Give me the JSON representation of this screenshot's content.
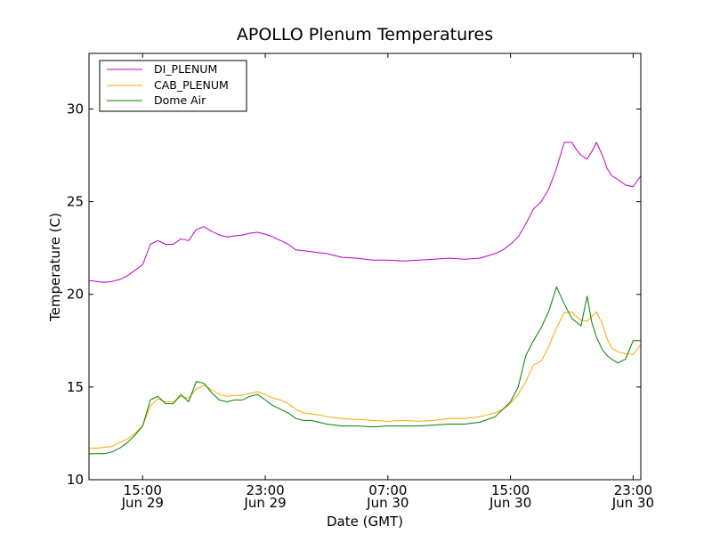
{
  "chart_data": {
    "type": "line",
    "title": "APOLLO Plenum Temperatures",
    "xlabel": "Date (GMT)",
    "ylabel": "Temperature (C)",
    "x_unit": "hours since Jun 29 00:00 GMT",
    "xlim": [
      11.5,
      47.5
    ],
    "ylim": [
      10,
      33
    ],
    "yticks": [
      {
        "value": 10,
        "label": "10"
      },
      {
        "value": 15,
        "label": "15"
      },
      {
        "value": 20,
        "label": "20"
      },
      {
        "value": 25,
        "label": "25"
      },
      {
        "value": 30,
        "label": "30"
      }
    ],
    "xticks": [
      {
        "value": 15,
        "time": "15:00",
        "date": "Jun 29"
      },
      {
        "value": 23,
        "time": "23:00",
        "date": "Jun 29"
      },
      {
        "value": 31,
        "time": "07:00",
        "date": "Jun 30"
      },
      {
        "value": 39,
        "time": "15:00",
        "date": "Jun 30"
      },
      {
        "value": 47,
        "time": "23:00",
        "date": "Jun 30"
      }
    ],
    "legend_position": "top-left",
    "series": [
      {
        "name": "DI_PLENUM",
        "color": "#bf00bf",
        "x": [
          11.5,
          12.0,
          12.5,
          13.0,
          13.5,
          14.0,
          14.5,
          15.0,
          15.5,
          16.0,
          16.5,
          17.0,
          17.5,
          18.0,
          18.5,
          19.0,
          19.5,
          20.0,
          20.5,
          21.0,
          21.5,
          22.0,
          22.5,
          23.0,
          23.5,
          24.0,
          24.5,
          25.0,
          25.5,
          26.0,
          26.5,
          27.0,
          28.0,
          29.0,
          30.0,
          31.0,
          32.0,
          33.0,
          34.0,
          35.0,
          36.0,
          37.0,
          38.0,
          38.5,
          39.0,
          39.5,
          40.0,
          40.5,
          41.0,
          41.5,
          42.0,
          42.5,
          43.0,
          43.3,
          43.6,
          44.0,
          44.3,
          44.6,
          45.0,
          45.3,
          45.6,
          46.0,
          46.5,
          47.0,
          47.5
        ],
        "y": [
          20.75,
          20.7,
          20.65,
          20.7,
          20.8,
          21.0,
          21.3,
          21.6,
          22.7,
          22.9,
          22.7,
          22.7,
          23.0,
          22.9,
          23.5,
          23.65,
          23.4,
          23.2,
          23.1,
          23.15,
          23.2,
          23.3,
          23.35,
          23.25,
          23.1,
          22.9,
          22.7,
          22.4,
          22.35,
          22.3,
          22.25,
          22.2,
          22.0,
          21.95,
          21.85,
          21.85,
          21.8,
          21.85,
          21.9,
          21.95,
          21.9,
          21.95,
          22.2,
          22.4,
          22.7,
          23.1,
          23.8,
          24.6,
          25.0,
          25.7,
          26.8,
          28.2,
          28.2,
          27.8,
          27.5,
          27.3,
          27.7,
          28.2,
          27.5,
          26.8,
          26.4,
          26.2,
          25.9,
          25.8,
          26.4
        ]
      },
      {
        "name": "CAB_PLENUM",
        "color": "#ffa500",
        "x": [
          11.5,
          12.0,
          12.5,
          13.0,
          13.5,
          14.0,
          14.5,
          15.0,
          15.5,
          16.0,
          16.5,
          17.0,
          17.5,
          18.0,
          18.5,
          19.0,
          19.5,
          20.0,
          20.5,
          21.0,
          21.5,
          22.0,
          22.5,
          23.0,
          23.5,
          24.0,
          24.5,
          25.0,
          25.5,
          26.0,
          26.5,
          27.0,
          28.0,
          29.0,
          30.0,
          31.0,
          32.0,
          33.0,
          34.0,
          35.0,
          36.0,
          37.0,
          38.0,
          38.5,
          39.0,
          39.5,
          40.0,
          40.5,
          41.0,
          41.5,
          42.0,
          42.5,
          43.0,
          43.3,
          43.6,
          44.0,
          44.3,
          44.6,
          45.0,
          45.3,
          45.6,
          46.0,
          46.5,
          47.0,
          47.5
        ],
        "y": [
          11.7,
          11.7,
          11.75,
          11.8,
          12.0,
          12.2,
          12.5,
          12.9,
          14.0,
          14.35,
          14.2,
          14.2,
          14.5,
          14.4,
          14.9,
          15.1,
          14.85,
          14.6,
          14.5,
          14.55,
          14.55,
          14.65,
          14.75,
          14.6,
          14.4,
          14.3,
          14.1,
          13.8,
          13.6,
          13.55,
          13.5,
          13.4,
          13.3,
          13.25,
          13.2,
          13.15,
          13.2,
          13.15,
          13.2,
          13.3,
          13.3,
          13.4,
          13.6,
          13.8,
          14.1,
          14.6,
          15.3,
          16.2,
          16.4,
          17.2,
          18.2,
          19.0,
          19.05,
          18.8,
          18.6,
          18.55,
          18.8,
          19.05,
          18.4,
          17.6,
          17.1,
          16.9,
          16.8,
          16.75,
          17.3
        ]
      },
      {
        "name": "Dome Air",
        "color": "#008000",
        "x": [
          11.5,
          12.0,
          12.5,
          13.0,
          13.5,
          14.0,
          14.5,
          15.0,
          15.5,
          16.0,
          16.5,
          17.0,
          17.5,
          18.0,
          18.5,
          19.0,
          19.5,
          20.0,
          20.5,
          21.0,
          21.5,
          22.0,
          22.5,
          23.0,
          23.5,
          24.0,
          24.5,
          25.0,
          25.5,
          26.0,
          26.5,
          27.0,
          28.0,
          29.0,
          30.0,
          31.0,
          32.0,
          33.0,
          34.0,
          35.0,
          36.0,
          37.0,
          38.0,
          38.5,
          39.0,
          39.5,
          40.0,
          40.5,
          41.0,
          41.5,
          42.0,
          42.5,
          43.0,
          43.3,
          43.6,
          44.0,
          44.3,
          44.6,
          45.0,
          45.3,
          45.6,
          46.0,
          46.5,
          47.0,
          47.5
        ],
        "y": [
          11.4,
          11.4,
          11.4,
          11.5,
          11.7,
          12.0,
          12.4,
          12.9,
          14.3,
          14.5,
          14.1,
          14.1,
          14.6,
          14.2,
          15.3,
          15.2,
          14.7,
          14.3,
          14.2,
          14.3,
          14.3,
          14.5,
          14.6,
          14.3,
          14.0,
          13.8,
          13.6,
          13.3,
          13.2,
          13.2,
          13.1,
          13.0,
          12.9,
          12.9,
          12.85,
          12.9,
          12.9,
          12.9,
          12.95,
          13.0,
          13.0,
          13.1,
          13.4,
          13.8,
          14.2,
          15.0,
          16.7,
          17.5,
          18.2,
          19.1,
          20.4,
          19.5,
          18.7,
          18.5,
          18.3,
          19.9,
          18.5,
          17.7,
          17.0,
          16.7,
          16.5,
          16.3,
          16.5,
          17.5,
          17.5
        ]
      }
    ]
  }
}
